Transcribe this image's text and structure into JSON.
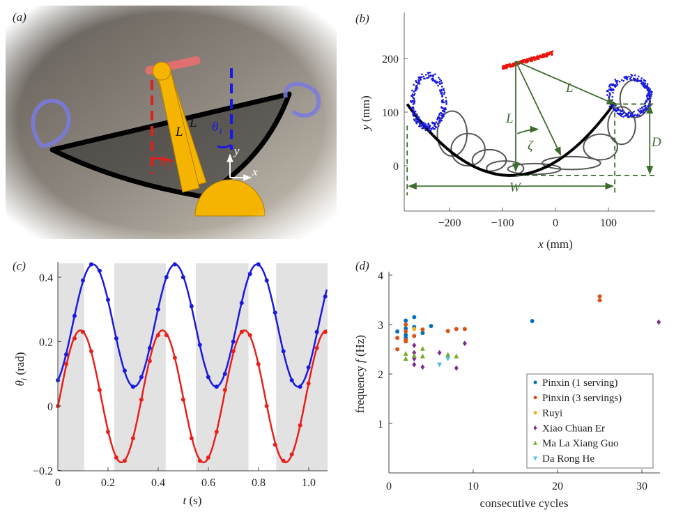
{
  "panel_a": {
    "label": "(a)",
    "link_label_1": "L",
    "link_label_2": "L",
    "theta1": "θ",
    "theta1_sub": "1",
    "theta2": "θ",
    "theta2_sub": "2",
    "axis_x": "x",
    "axis_y": "y",
    "colors": {
      "link": "#f5b400",
      "theta1": "#1a1adf",
      "theta2": "#e0201c",
      "wok": "#000000",
      "loop": "#7a7adf"
    }
  },
  "chart_data": [
    {
      "panel": "(b)",
      "type": "scatter",
      "xlabel_var": "x",
      "xlabel_unit": " (mm)",
      "ylabel_var": "y",
      "ylabel_unit": " (mm)",
      "xlim": [
        -285,
        190
      ],
      "ylim": [
        -85,
        283
      ],
      "xticks": [
        -200,
        -100,
        0,
        100
      ],
      "yticks": [
        0,
        100,
        200
      ],
      "xtick_labels": [
        "−200",
        "−100",
        "0",
        "100"
      ],
      "ytick_labels": [
        "0",
        "100",
        "200"
      ],
      "arc": {
        "x_start": -280,
        "x_end": 112,
        "vertex": [
          -85,
          -18
        ],
        "curvature": 0.0035,
        "color": "#000000"
      },
      "loops": [
        {
          "cx": -195,
          "cy": 60,
          "rx": 28,
          "ry": 42
        },
        {
          "cx": -165,
          "cy": 30,
          "rx": 32,
          "ry": 30
        },
        {
          "cx": -125,
          "cy": 10,
          "rx": 32,
          "ry": 20
        },
        {
          "cx": -95,
          "cy": -5,
          "rx": 35,
          "ry": 14
        },
        {
          "cx": -40,
          "cy": -6,
          "rx": 50,
          "ry": 10
        },
        {
          "cx": 30,
          "cy": 5,
          "rx": 55,
          "ry": 12
        },
        {
          "cx": 85,
          "cy": 35,
          "rx": 32,
          "ry": 24
        },
        {
          "cx": 125,
          "cy": 75,
          "rx": 26,
          "ry": 35
        },
        {
          "cx": 150,
          "cy": 125,
          "rx": 28,
          "ry": 35
        }
      ],
      "clusters": [
        {
          "name": "left-hand-loop",
          "color": "#1a1adf",
          "cx": -240,
          "cy": 120,
          "rx": 30,
          "ry": 48
        },
        {
          "name": "right-hand-loop",
          "color": "#1a1adf",
          "cx": 140,
          "cy": 130,
          "rx": 38,
          "ry": 35
        }
      ],
      "pivot_track": {
        "color": "#e8140c",
        "from": [
          -100,
          183
        ],
        "to": [
          -5,
          210
        ]
      },
      "annotations": {
        "L_vertical": "L",
        "L_diagonal": "L",
        "zeta": "ζ",
        "D": "D",
        "W": "W",
        "color": "#3d6b2c"
      }
    },
    {
      "panel": "(c)",
      "type": "line",
      "xlabel_var": "t",
      "xlabel_unit": " (s)",
      "ylabel_var": "θ",
      "ylabel_sub": "i",
      "ylabel_unit": " (rad)",
      "xlim": [
        0,
        1.075
      ],
      "ylim": [
        -0.2,
        0.443
      ],
      "xticks": [
        0,
        0.2,
        0.4,
        0.6,
        0.8,
        1.0
      ],
      "xtick_labels": [
        "0",
        "0.2",
        "0.4",
        "0.6",
        "0.8",
        "1.0"
      ],
      "yticks": [
        -0.2,
        0,
        0.2,
        0.4
      ],
      "ytick_labels": [
        "−0.2",
        "0",
        "0.2",
        "0.4"
      ],
      "shaded_intervals": [
        [
          0,
          0.105
        ],
        [
          0.225,
          0.43
        ],
        [
          0.55,
          0.76
        ],
        [
          0.87,
          1.075
        ]
      ],
      "t_step": 0.0333,
      "series": [
        {
          "color": "#1a1adf",
          "fit": {
            "offset": 0.25,
            "amplitude": 0.19,
            "period": 0.327,
            "peak_t": 0.14
          },
          "values": [
            0.08,
            0.16,
            0.28,
            0.39,
            0.44,
            0.42,
            0.33,
            0.21,
            0.11,
            0.06,
            0.09,
            0.18,
            0.3,
            0.4,
            0.44,
            0.4,
            0.31,
            0.19,
            0.09,
            0.06,
            0.1,
            0.2,
            0.32,
            0.41,
            0.44,
            0.39,
            0.29,
            0.17,
            0.08,
            0.06,
            0.12,
            0.23,
            0.34
          ]
        },
        {
          "color": "#e8201c",
          "fit": {
            "offset": 0.03,
            "amplitude": 0.205,
            "period": 0.327,
            "peak_t": 0.09
          },
          "values": [
            0.0,
            0.13,
            0.21,
            0.23,
            0.17,
            0.05,
            -0.08,
            -0.16,
            -0.17,
            -0.1,
            0.02,
            0.14,
            0.22,
            0.22,
            0.15,
            0.02,
            -0.1,
            -0.17,
            -0.16,
            -0.08,
            0.05,
            0.17,
            0.23,
            0.22,
            0.13,
            0.0,
            -0.12,
            -0.17,
            -0.15,
            -0.06,
            0.07,
            0.18,
            0.23
          ]
        }
      ]
    },
    {
      "panel": "(d)",
      "type": "scatter",
      "xlabel": "consecutive cycles",
      "ylabel_pre": "frequency ",
      "ylabel_var": "f",
      "ylabel_unit": " (Hz)",
      "xlim": [
        0,
        32
      ],
      "ylim": [
        0,
        4
      ],
      "xticks": [
        0,
        10,
        20,
        30
      ],
      "xtick_labels": [
        "0",
        "10",
        "20",
        "30"
      ],
      "yticks": [
        1,
        2,
        3,
        4
      ],
      "ytick_labels": [
        "1",
        "2",
        "3",
        "4"
      ],
      "legend_position": "bottom-right",
      "series": [
        {
          "name": "Pinxin (1 serving)",
          "color": "#0072BD",
          "marker": "circle",
          "points": [
            [
              1,
              2.86
            ],
            [
              2,
              3.08
            ],
            [
              2,
              2.92
            ],
            [
              2,
              2.79
            ],
            [
              2,
              2.73
            ],
            [
              3,
              3.15
            ],
            [
              3,
              2.95
            ],
            [
              4,
              2.83
            ],
            [
              5,
              2.97
            ],
            [
              17,
              3.07
            ]
          ]
        },
        {
          "name": "Pinxin (3 servings)",
          "color": "#D95319",
          "marker": "circle",
          "points": [
            [
              1,
              2.73
            ],
            [
              1,
              2.5
            ],
            [
              2,
              3.0
            ],
            [
              2,
              2.86
            ],
            [
              2,
              2.69
            ],
            [
              2,
              2.66
            ],
            [
              3,
              2.77
            ],
            [
              4,
              2.9
            ],
            [
              7,
              2.87
            ],
            [
              8,
              2.91
            ],
            [
              9,
              2.91
            ],
            [
              25,
              3.57
            ],
            [
              25,
              3.49
            ]
          ]
        },
        {
          "name": "Ruyi",
          "color": "#EDB120",
          "marker": "circle",
          "points": [
            [
              3,
              2.91
            ]
          ]
        },
        {
          "name": "Xiao Chuan Er",
          "color": "#7E2F8E",
          "marker": "diamond",
          "points": [
            [
              3,
              2.58
            ],
            [
              3,
              2.43
            ],
            [
              3,
              2.31
            ],
            [
              3,
              2.19
            ],
            [
              4,
              2.14
            ],
            [
              6,
              2.43
            ],
            [
              8,
              2.12
            ],
            [
              9,
              2.62
            ],
            [
              32,
              3.05
            ]
          ]
        },
        {
          "name": "Ma La Xiang Guo",
          "color": "#77AC30",
          "marker": "triangle-up",
          "points": [
            [
              2,
              2.41
            ],
            [
              2,
              2.31
            ],
            [
              3,
              2.37
            ],
            [
              4,
              2.51
            ],
            [
              4,
              2.36
            ],
            [
              7,
              2.39
            ],
            [
              8,
              2.36
            ]
          ]
        },
        {
          "name": "Da Rong He",
          "color": "#4DBEEE",
          "marker": "triangle-down",
          "points": [
            [
              6,
              2.19
            ],
            [
              7,
              2.31
            ]
          ]
        }
      ]
    }
  ]
}
